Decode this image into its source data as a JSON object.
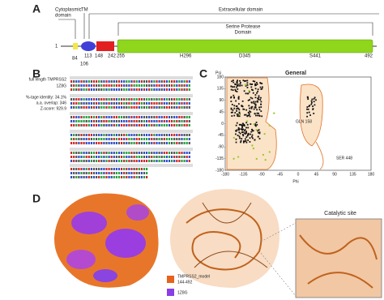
{
  "panel_a": {
    "label": "A",
    "cytoplasmic": [
      "Cytoplasmic",
      "domain"
    ],
    "tm": "TM",
    "extracellular": "Extracellular domain",
    "serine": [
      "Serine Protease",
      "Domain"
    ],
    "start": "1",
    "positions": [
      "84",
      "106",
      "113",
      "148",
      "242",
      "255"
    ],
    "residues": [
      "H296",
      "D345",
      "S441"
    ],
    "end": "492"
  },
  "panel_b": {
    "label": "B",
    "query": "full length TMPRSS2",
    "template": "1Z8G",
    "stats": [
      "%-tage identity: 34.1%",
      "a.a. overlap: 346",
      "Z-score: 929.9"
    ]
  },
  "panel_c": {
    "label": "C",
    "title": "General",
    "y_axis": "Psi",
    "x_axis": "Phi",
    "yticks": [
      "180",
      "135",
      "90",
      "45",
      "0",
      "-45",
      "-90",
      "-135",
      "-180"
    ],
    "xticks": [
      "-180",
      "-135",
      "-90",
      "-45",
      "0",
      "45",
      "90",
      "135",
      "180"
    ],
    "annotations": [
      "GLN 158",
      "SER 448"
    ]
  },
  "panel_d": {
    "label": "D",
    "zoom": "Catalytic site",
    "legend": [
      [
        "TMPRSS2_model",
        "144-492"
      ],
      [
        "1Z8G"
      ]
    ]
  }
}
